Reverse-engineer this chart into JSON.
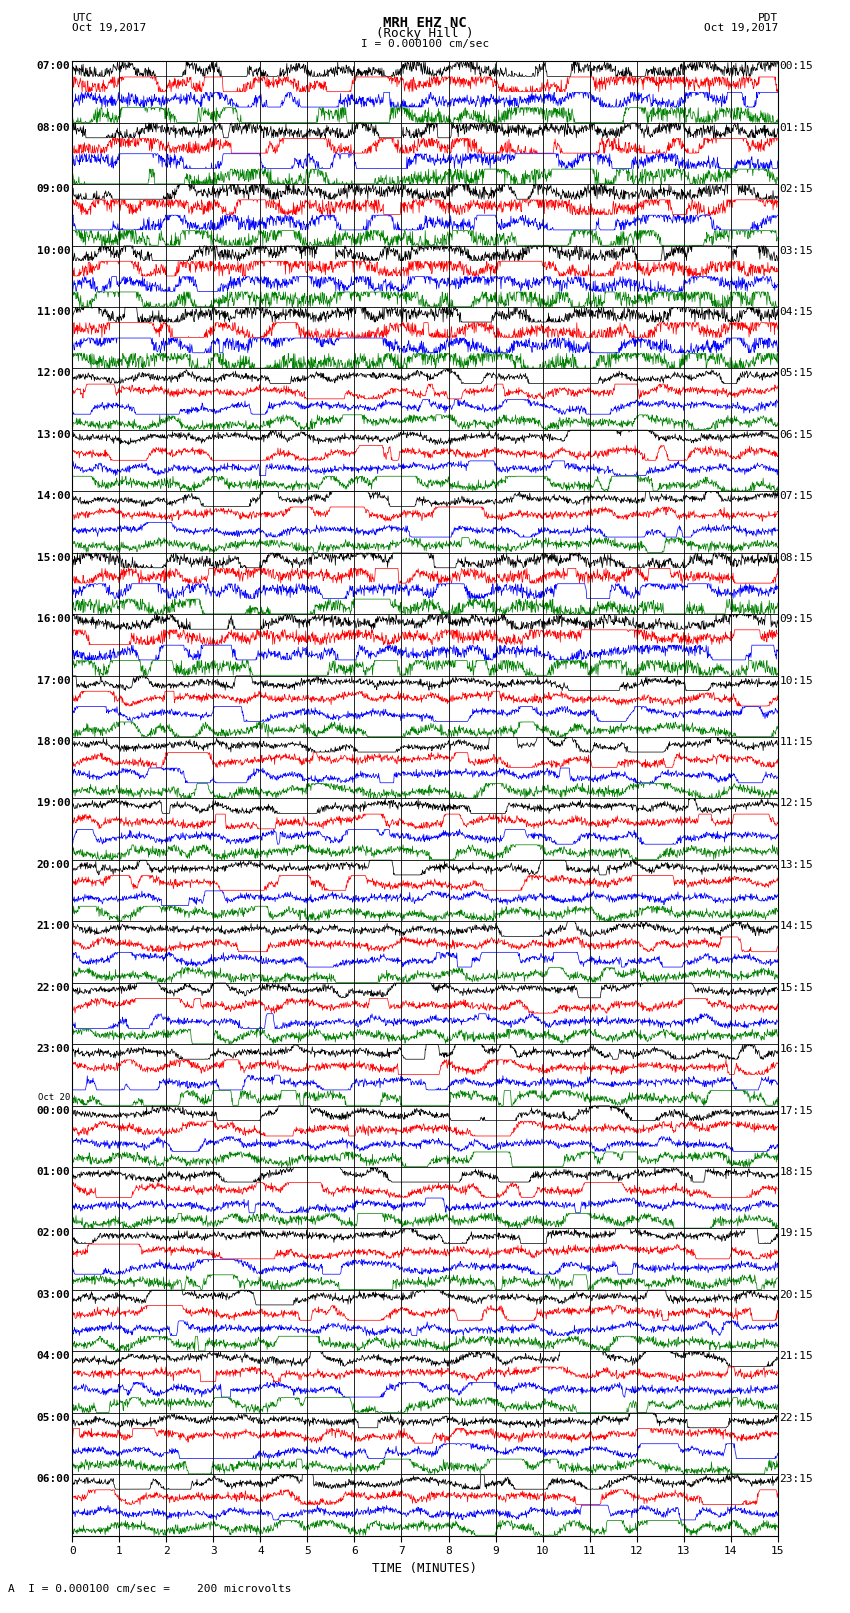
{
  "title_line1": "MRH EHZ NC",
  "title_line2": "(Rocky Hill )",
  "scale_text": "I = 0.000100 cm/sec",
  "footer_text": "A  I = 0.000100 cm/sec =    200 microvolts",
  "xlabel": "TIME (MINUTES)",
  "left_label_utc": "UTC",
  "left_date": "Oct 19,2017",
  "right_label_pdt": "PDT",
  "right_date": "Oct 19,2017",
  "bg_color": "#ffffff",
  "trace_colors": [
    "#000000",
    "#ff0000",
    "#0000ff",
    "#008000"
  ],
  "num_traces": 96,
  "traces_per_hour": 4,
  "time_minutes": 15,
  "left_times": [
    "07:00",
    "08:00",
    "09:00",
    "10:00",
    "11:00",
    "12:00",
    "13:00",
    "14:00",
    "15:00",
    "16:00",
    "17:00",
    "18:00",
    "19:00",
    "20:00",
    "21:00",
    "22:00",
    "23:00",
    "00:00",
    "01:00",
    "02:00",
    "03:00",
    "04:00",
    "05:00",
    "06:00"
  ],
  "left_times_special": [
    17
  ],
  "right_times": [
    "00:15",
    "01:15",
    "02:15",
    "03:15",
    "04:15",
    "05:15",
    "06:15",
    "07:15",
    "08:15",
    "09:15",
    "10:15",
    "11:15",
    "12:15",
    "13:15",
    "14:15",
    "15:15",
    "16:15",
    "17:15",
    "18:15",
    "19:15",
    "20:15",
    "21:15",
    "22:15",
    "23:15"
  ],
  "grid_color": "#000000",
  "font_family": "monospace",
  "seed": 42,
  "lw_trace": 0.5,
  "lw_grid": 0.6
}
